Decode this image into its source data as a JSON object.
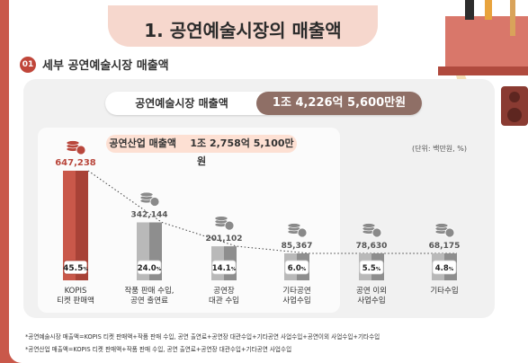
{
  "header": {
    "title": "1. 공연예술시장의 매출액"
  },
  "section": {
    "number": "01",
    "title": "세부 공연예술시장 매출액"
  },
  "summary": {
    "market_label": "공연예술시장 매출액",
    "market_value": "1조 4,226억 5,600만원",
    "industry_label": "공연산업 매출액",
    "industry_value": "1조 2,758억 5,100만원"
  },
  "unit_note": "(단위: 백만원, %)",
  "chart_data": {
    "type": "bar",
    "categories": [
      [
        "KOPIS",
        "티켓 판매액"
      ],
      [
        "작품 판매 수입,",
        "공연 출연료"
      ],
      [
        "공연장",
        "대관 수입"
      ],
      [
        "기타공연",
        "사업수입"
      ],
      [
        "공연 이외",
        "사업수입"
      ],
      [
        "기타수입"
      ]
    ],
    "values": [
      647238,
      342144,
      201102,
      85367,
      78630,
      68175
    ],
    "value_labels": [
      "647,238",
      "342,144",
      "201,102",
      "85,367",
      "78,630",
      "68,175"
    ],
    "shares": [
      "45.5",
      "24.0",
      "14.1",
      "6.0",
      "5.5",
      "4.8"
    ],
    "share_unit": "%",
    "highlight_index": 0,
    "colors": {
      "highlight": "#c9584a",
      "highlight_dark": "#a84237",
      "normal": "#b9b9b9",
      "normal_dark": "#8e8e8e",
      "coin": "#8a8a8a",
      "coin_highlight": "#b9473c"
    }
  },
  "footnotes": [
    "*공연예술시장 매출액=KOPIS 티켓 판매액+작품 판매 수입, 공연 출연료+공연장 대관수입+기타공연 사업수입+공연이외 사업수입+기타수입",
    "*공연산업 매출액=KOPIS 티켓 판매액+작품 판매 수입, 공연 출연료+공연장 대관수입+기타공연 사업수입"
  ]
}
